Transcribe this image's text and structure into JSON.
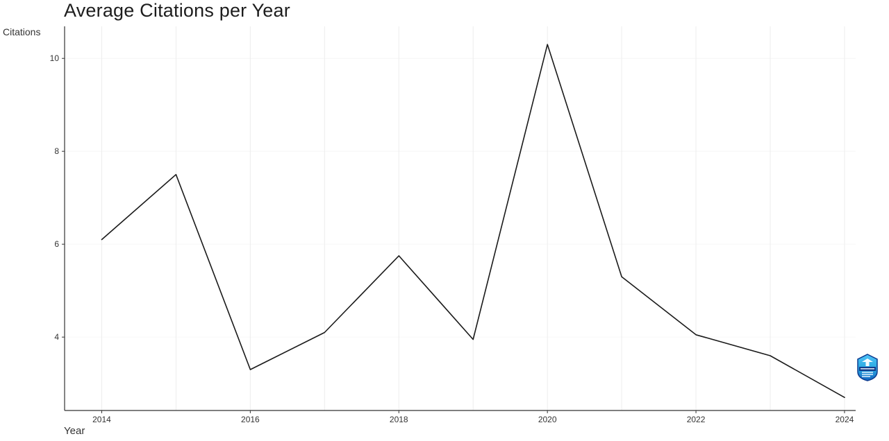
{
  "title": "Average Citations per Year",
  "axis": {
    "y_label": "Citations",
    "x_label": "Year"
  },
  "chart_data": {
    "type": "line",
    "title": "Average Citations per Year",
    "xlabel": "Year",
    "ylabel": "Citations",
    "x": [
      2014,
      2015,
      2016,
      2017,
      2018,
      2019,
      2020,
      2021,
      2022,
      2023,
      2024
    ],
    "values": [
      6.1,
      7.5,
      3.3,
      4.1,
      5.75,
      3.95,
      10.3,
      5.3,
      4.05,
      3.6,
      2.7
    ],
    "x_ticks": [
      2014,
      2016,
      2018,
      2020,
      2022,
      2024
    ],
    "y_ticks": [
      4,
      6,
      8,
      10
    ],
    "xlim": [
      2013.5,
      2024.15
    ],
    "ylim": [
      2.42,
      10.69
    ],
    "grid": true,
    "legend": "none",
    "line_color": "#1a1a1a",
    "grid_color": "#ededed",
    "axis_color": "#333333"
  },
  "logo": {
    "name": "shield-watermark"
  }
}
